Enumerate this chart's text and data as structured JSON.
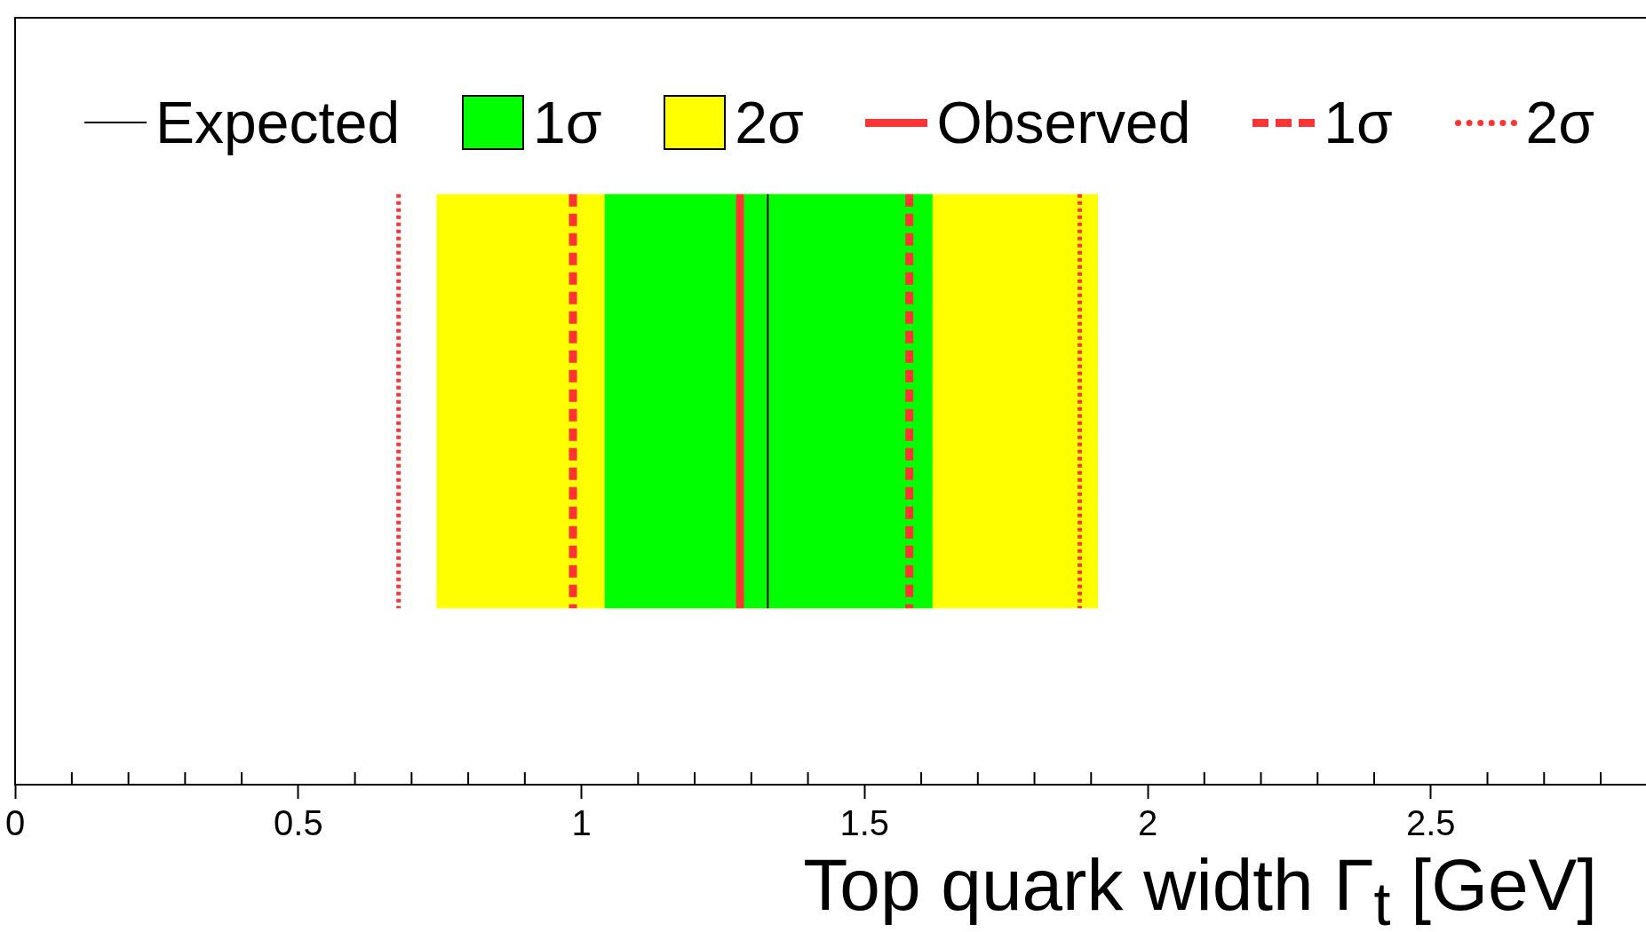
{
  "chart_data": {
    "type": "bar",
    "orientation": "horizontal",
    "xlabel": "Top quark width Γ$_{t}$ [GeV]",
    "categories": [
      null
    ],
    "series": [
      {
        "name": "1σ",
        "color": "#00ff00",
        "values": [
          0.579
        ],
        "base": [
          1.041
        ]
      },
      {
        "name": "2σ",
        "color": "#ffff00",
        "values": [
          1.168
        ],
        "base": [
          0.744
        ]
      }
    ],
    "xlim": [
      0,
      2.88
    ],
    "xticks": [
      0,
      {
        "value": 0.1,
        "label": null
      },
      {
        "value": 0.2,
        "label": null
      },
      {
        "value": 0.3,
        "label": null
      },
      {
        "value": 0.4,
        "label": null
      },
      0.5,
      {
        "value": 0.6,
        "label": null
      },
      {
        "value": 0.7,
        "label": null
      },
      {
        "value": 0.8,
        "label": null
      },
      {
        "value": 0.9,
        "label": null
      },
      1,
      {
        "value": 1.1,
        "label": null
      },
      {
        "value": 1.2,
        "label": null
      },
      {
        "value": 1.3,
        "label": null
      },
      {
        "value": 1.4,
        "label": null
      },
      1.5,
      {
        "value": 1.6,
        "label": null
      },
      {
        "value": 1.7,
        "label": null
      },
      {
        "value": 1.8,
        "label": null
      },
      {
        "value": 1.9,
        "label": null
      },
      2,
      {
        "value": 2.1,
        "label": null
      },
      {
        "value": 2.2,
        "label": null
      },
      {
        "value": 2.3,
        "label": null
      },
      {
        "value": 2.4,
        "label": null
      },
      2.5,
      {
        "value": 2.6,
        "label": null
      },
      {
        "value": 2.7,
        "label": null
      },
      {
        "value": 2.8,
        "label": null
      }
    ],
    "ref_lines": [
      {
        "axis": "x",
        "value": 1.329,
        "label": "Expected",
        "color": "#000000",
        "line_style": "solid"
      },
      {
        "axis": "x",
        "value": 1.28,
        "label": "Observed",
        "color": "#ff3333",
        "line_style": "solid"
      },
      {
        "axis": "x",
        "value": 0.985,
        "label": "1σ",
        "color": "#ff3333",
        "line_style": "dashed"
      },
      {
        "axis": "x",
        "value": 1.579,
        "color": "#ff3333",
        "line_style": "dashed"
      },
      {
        "axis": "x",
        "value": 0.677,
        "label": "2σ",
        "color": "#ff3333",
        "line_style": "dotted"
      },
      {
        "axis": "x",
        "value": 1.88,
        "color": "#ff3333",
        "line_style": "dotted"
      }
    ],
    "legend": "top"
  }
}
